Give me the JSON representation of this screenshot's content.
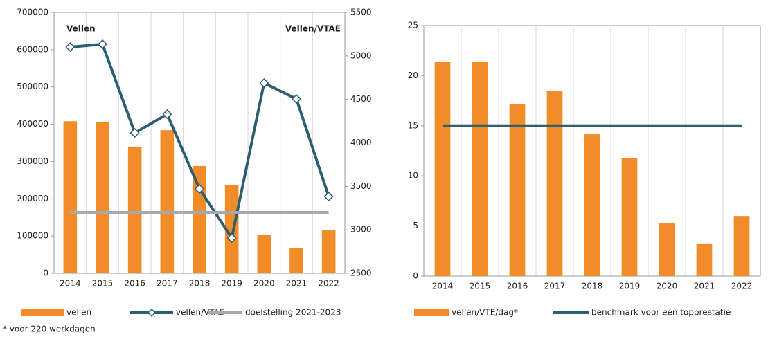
{
  "chart_data": [
    {
      "type": "combo",
      "annotations": [
        "Vellen",
        "Vellen/VTAE"
      ],
      "categories": [
        "2014",
        "2015",
        "2016",
        "2017",
        "2018",
        "2019",
        "2020",
        "2021",
        "2022"
      ],
      "series": [
        {
          "name": "vellen",
          "kind": "bar",
          "color": "#f28c28",
          "axis": "y",
          "values": [
            408000,
            405000,
            340000,
            384000,
            288000,
            236000,
            104000,
            67000,
            115000
          ]
        },
        {
          "name": "vellen/VTAE",
          "kind": "line",
          "marker": "diamond",
          "color": "#2d5f73",
          "axis": "y2",
          "values": [
            5102,
            5134,
            4115,
            4330,
            3471,
            2906,
            4688,
            4505,
            3383
          ]
        },
        {
          "name": "doelstelling 2021-2023",
          "kind": "line",
          "color": "#a6a9ad",
          "axis": "y2",
          "values": [
            3200,
            3200,
            3200,
            3200,
            3200,
            3200,
            3200,
            3200,
            3200
          ]
        }
      ],
      "ylim": [
        0,
        700000
      ],
      "yticks": [
        0,
        100000,
        200000,
        300000,
        400000,
        500000,
        600000,
        700000
      ],
      "y2lim": [
        2500,
        5500
      ],
      "y2ticks": [
        2500,
        3000,
        3500,
        4000,
        4500,
        5000,
        5500
      ]
    },
    {
      "type": "combo",
      "categories": [
        "2014",
        "2015",
        "2016",
        "2017",
        "2018",
        "2019",
        "2020",
        "2021",
        "2022"
      ],
      "series": [
        {
          "name": "vellen/VTE/dag*",
          "kind": "bar",
          "color": "#f28c28",
          "axis": "y",
          "values": [
            21.35,
            21.35,
            17.2,
            18.5,
            14.15,
            11.75,
            5.25,
            3.25,
            6.0
          ]
        },
        {
          "name": "benchmark voor een topprestatie",
          "kind": "line",
          "color": "#2d5f73",
          "axis": "y",
          "values": [
            15,
            15,
            15,
            15,
            15,
            15,
            15,
            15,
            15
          ]
        }
      ],
      "ylim": [
        0,
        25
      ],
      "yticks": [
        0,
        5,
        10,
        15,
        20,
        25
      ]
    }
  ],
  "footnote": "* voor 220 werkdagen"
}
